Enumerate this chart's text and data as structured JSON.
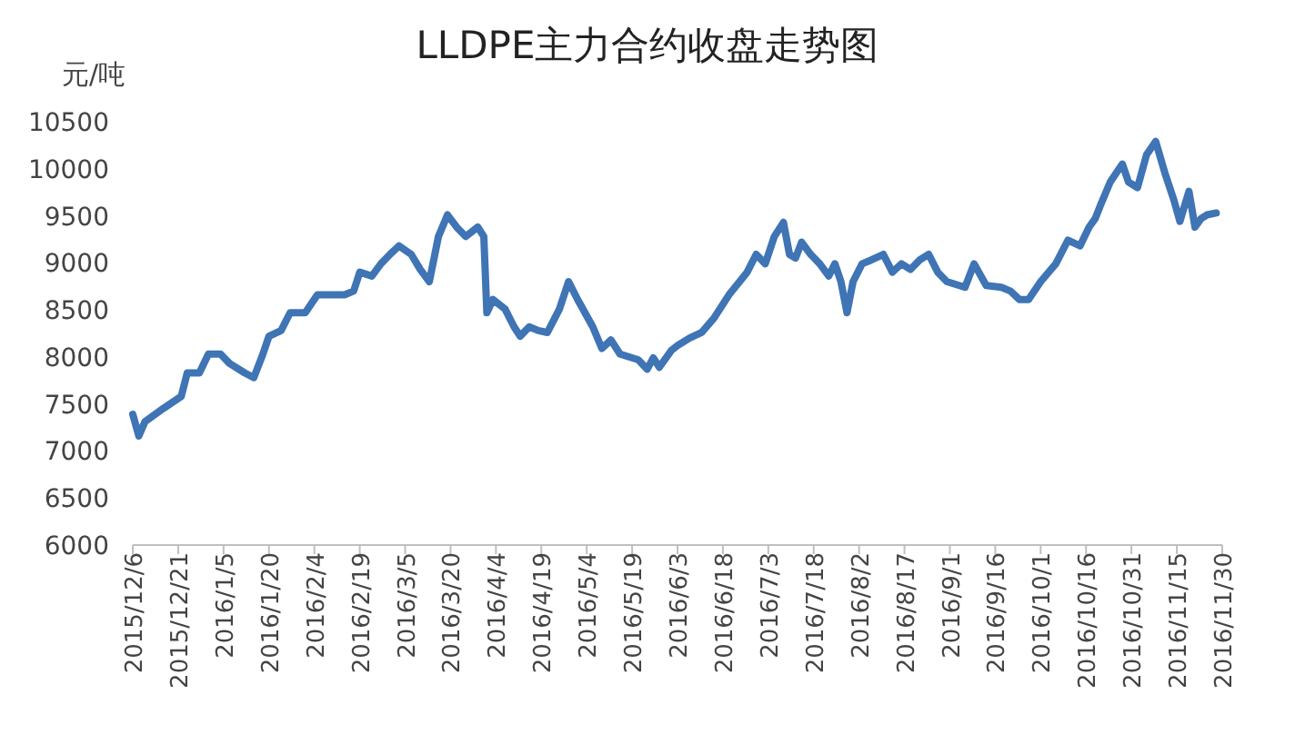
{
  "chart_data": {
    "type": "line",
    "title": "LLDPE主力合约收盘走势图",
    "ylabel": "元/吨",
    "grid": false,
    "marker": "none",
    "line_style": "solid",
    "xlim": [
      "2015-12-06",
      "2016-11-30"
    ],
    "ylim": [
      6000,
      10500
    ],
    "yticks": [
      6000,
      6500,
      7000,
      7500,
      8000,
      8500,
      9000,
      9500,
      10000,
      10500
    ],
    "xticks": [
      {
        "value": "2015-12-06",
        "label": "2015/12/6"
      },
      {
        "value": "2015-12-21",
        "label": "2015/12/21"
      },
      {
        "value": "2016-01-05",
        "label": "2016/1/5"
      },
      {
        "value": "2016-01-20",
        "label": "2016/1/20"
      },
      {
        "value": "2016-02-04",
        "label": "2016/2/4"
      },
      {
        "value": "2016-02-19",
        "label": "2016/2/19"
      },
      {
        "value": "2016-03-05",
        "label": "2016/3/5"
      },
      {
        "value": "2016-03-20",
        "label": "2016/3/20"
      },
      {
        "value": "2016-04-04",
        "label": "2016/4/4"
      },
      {
        "value": "2016-04-19",
        "label": "2016/4/19"
      },
      {
        "value": "2016-05-04",
        "label": "2016/5/4"
      },
      {
        "value": "2016-05-19",
        "label": "2016/5/19"
      },
      {
        "value": "2016-06-03",
        "label": "2016/6/3"
      },
      {
        "value": "2016-06-18",
        "label": "2016/6/18"
      },
      {
        "value": "2016-07-03",
        "label": "2016/7/3"
      },
      {
        "value": "2016-07-18",
        "label": "2016/7/18"
      },
      {
        "value": "2016-08-02",
        "label": "2016/8/2"
      },
      {
        "value": "2016-08-17",
        "label": "2016/8/17"
      },
      {
        "value": "2016-09-01",
        "label": "2016/9/1"
      },
      {
        "value": "2016-09-16",
        "label": "2016/9/16"
      },
      {
        "value": "2016-10-01",
        "label": "2016/10/1"
      },
      {
        "value": "2016-10-16",
        "label": "2016/10/16"
      },
      {
        "value": "2016-10-31",
        "label": "2016/10/31"
      },
      {
        "value": "2016-11-15",
        "label": "2016/11/15"
      },
      {
        "value": "2016-11-30",
        "label": "2016/11/30"
      }
    ],
    "series": [
      {
        "color": "#3f74b5",
        "x": [
          "2015-12-06",
          "2015-12-08",
          "2015-12-10",
          "2015-12-16",
          "2015-12-22",
          "2015-12-24",
          "2015-12-28",
          "2015-12-31",
          "2016-01-04",
          "2016-01-07",
          "2016-01-12",
          "2016-01-15",
          "2016-01-18",
          "2016-01-20",
          "2016-01-24",
          "2016-01-27",
          "2016-02-01",
          "2016-02-05",
          "2016-02-14",
          "2016-02-17",
          "2016-02-19",
          "2016-02-23",
          "2016-02-26",
          "2016-02-29",
          "2016-03-03",
          "2016-03-07",
          "2016-03-10",
          "2016-03-13",
          "2016-03-16",
          "2016-03-19",
          "2016-03-22",
          "2016-03-25",
          "2016-03-29",
          "2016-03-31",
          "2016-04-01",
          "2016-04-03",
          "2016-04-07",
          "2016-04-10",
          "2016-04-12",
          "2016-04-15",
          "2016-04-18",
          "2016-04-21",
          "2016-04-25",
          "2016-04-28",
          "2016-05-01",
          "2016-05-06",
          "2016-05-09",
          "2016-05-12",
          "2016-05-15",
          "2016-05-21",
          "2016-05-24",
          "2016-05-26",
          "2016-05-28",
          "2016-06-01",
          "2016-06-03",
          "2016-06-07",
          "2016-06-11",
          "2016-06-15",
          "2016-06-20",
          "2016-06-26",
          "2016-06-29",
          "2016-07-02",
          "2016-07-05",
          "2016-07-08",
          "2016-07-10",
          "2016-07-12",
          "2016-07-14",
          "2016-07-17",
          "2016-07-20",
          "2016-07-23",
          "2016-07-25",
          "2016-07-27",
          "2016-07-29",
          "2016-07-31",
          "2016-08-03",
          "2016-08-06",
          "2016-08-10",
          "2016-08-13",
          "2016-08-16",
          "2016-08-19",
          "2016-08-22",
          "2016-08-25",
          "2016-08-28",
          "2016-08-31",
          "2016-09-06",
          "2016-09-09",
          "2016-09-13",
          "2016-09-18",
          "2016-09-21",
          "2016-09-24",
          "2016-09-27",
          "2016-10-01",
          "2016-10-06",
          "2016-10-10",
          "2016-10-14",
          "2016-10-17",
          "2016-10-19",
          "2016-10-21",
          "2016-10-24",
          "2016-10-28",
          "2016-10-30",
          "2016-11-02",
          "2016-11-05",
          "2016-11-08",
          "2016-11-11",
          "2016-11-14",
          "2016-11-16",
          "2016-11-19",
          "2016-11-21",
          "2016-11-23",
          "2016-11-25",
          "2016-11-28"
        ],
        "values": [
          7390,
          7160,
          7310,
          7450,
          7580,
          7830,
          7830,
          8030,
          8030,
          7930,
          7830,
          7780,
          8030,
          8220,
          8280,
          8470,
          8470,
          8660,
          8660,
          8700,
          8900,
          8860,
          8990,
          9090,
          9180,
          9090,
          8930,
          8800,
          9280,
          9510,
          9380,
          9280,
          9380,
          9280,
          8470,
          8610,
          8510,
          8320,
          8220,
          8320,
          8280,
          8260,
          8510,
          8800,
          8610,
          8320,
          8090,
          8180,
          8030,
          7970,
          7870,
          7990,
          7890,
          8070,
          8120,
          8200,
          8260,
          8410,
          8660,
          8900,
          9090,
          8990,
          9280,
          9430,
          9090,
          9050,
          9220,
          9090,
          8990,
          8860,
          8990,
          8800,
          8470,
          8800,
          8990,
          9030,
          9090,
          8900,
          8990,
          8930,
          9030,
          9090,
          8900,
          8800,
          8740,
          8990,
          8760,
          8740,
          8700,
          8610,
          8610,
          8800,
          8990,
          9240,
          9180,
          9380,
          9470,
          9630,
          9860,
          10050,
          9860,
          9800,
          10150,
          10290,
          9960,
          9670,
          9440,
          9760,
          9380,
          9470,
          9510,
          9530
        ]
      }
    ]
  }
}
